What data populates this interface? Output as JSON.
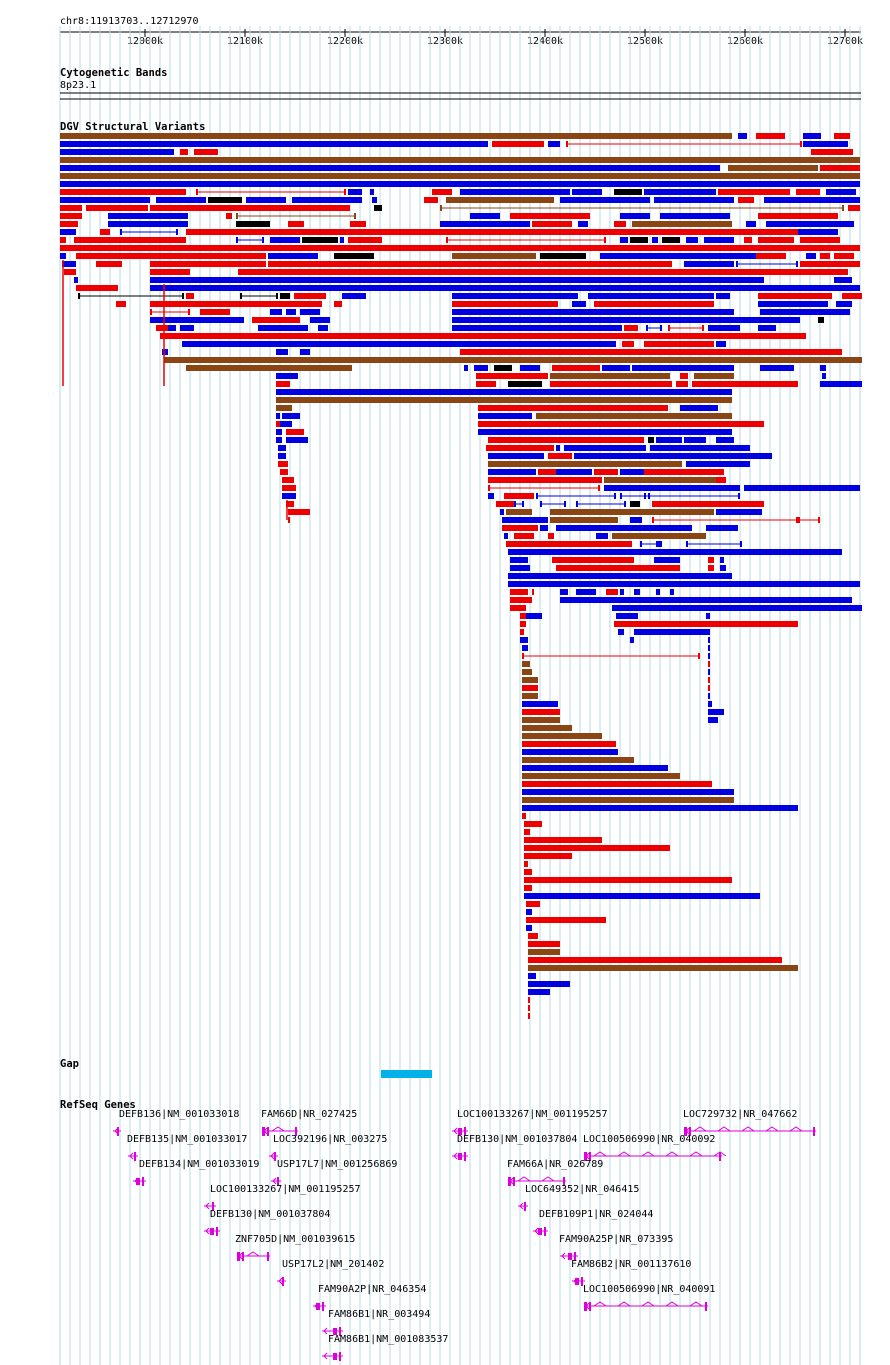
{
  "ruler": {
    "position": "chr8:11913703..12712970",
    "ticks": [
      "12000k",
      "12100k",
      "12200k",
      "12300k",
      "12400k",
      "12500k",
      "12600k",
      "12700k"
    ]
  },
  "cytoband": {
    "title": "Cytogenetic Bands",
    "band": "8p23.1"
  },
  "dgv": {
    "title": "DGV Structural Variants"
  },
  "gap": {
    "title": "Gap"
  },
  "genes_track": {
    "title": "RefSeq Genes"
  },
  "genes": [
    "DEFB136|NM_001033018",
    "FAM66D|NR_027425",
    "LOC100133267|NM_001195257",
    "LOC729732|NR_047662",
    "DEFB135|NM_001033017",
    "LOC392196|NR_003275",
    "DEFB130|NM_001037804",
    "LOC100506990|NR_040092",
    "DEFB134|NM_001033019",
    "USP17L7|NM_001256869",
    "FAM66A|NR_026789",
    "LOC100133267|NM_001195257",
    "LOC649352|NR_046415",
    "DEFB130|NM_001037804",
    "DEFB109P1|NR_024044",
    "ZNF705D|NM_001039615",
    "FAM90A25P|NR_073395",
    "USP17L2|NM_201402",
    "FAM86B2|NR_001137610",
    "FAM90A2P|NR_046354",
    "LOC100506990|NR_040091",
    "FAM86B1|NR_003494",
    "FAM86B1|NM_001083537"
  ],
  "colors": {
    "gain": "#0000e0",
    "loss": "#ee0000",
    "gain_loss": "#8b4513",
    "other": "#000000",
    "gene": "#dd00dd",
    "gap": "#00b0e8",
    "grid": "#b6d8ee"
  }
}
